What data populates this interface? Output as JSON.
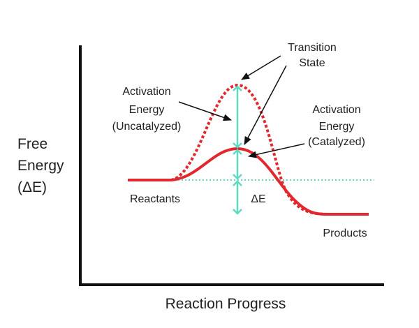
{
  "axes": {
    "y_label": [
      "Free",
      "Energy",
      "(ΔE)"
    ],
    "x_label": "Reaction Progress"
  },
  "labels": {
    "transition_state": [
      "Transition",
      "State"
    ],
    "uncatalyzed": [
      "Activation",
      "Energy",
      "(Uncatalyzed)"
    ],
    "catalyzed": [
      "Activation",
      "Energy",
      "(Catalyzed)"
    ],
    "reactants": "Reactants",
    "delta_e": "ΔE",
    "products": "Products"
  }
}
